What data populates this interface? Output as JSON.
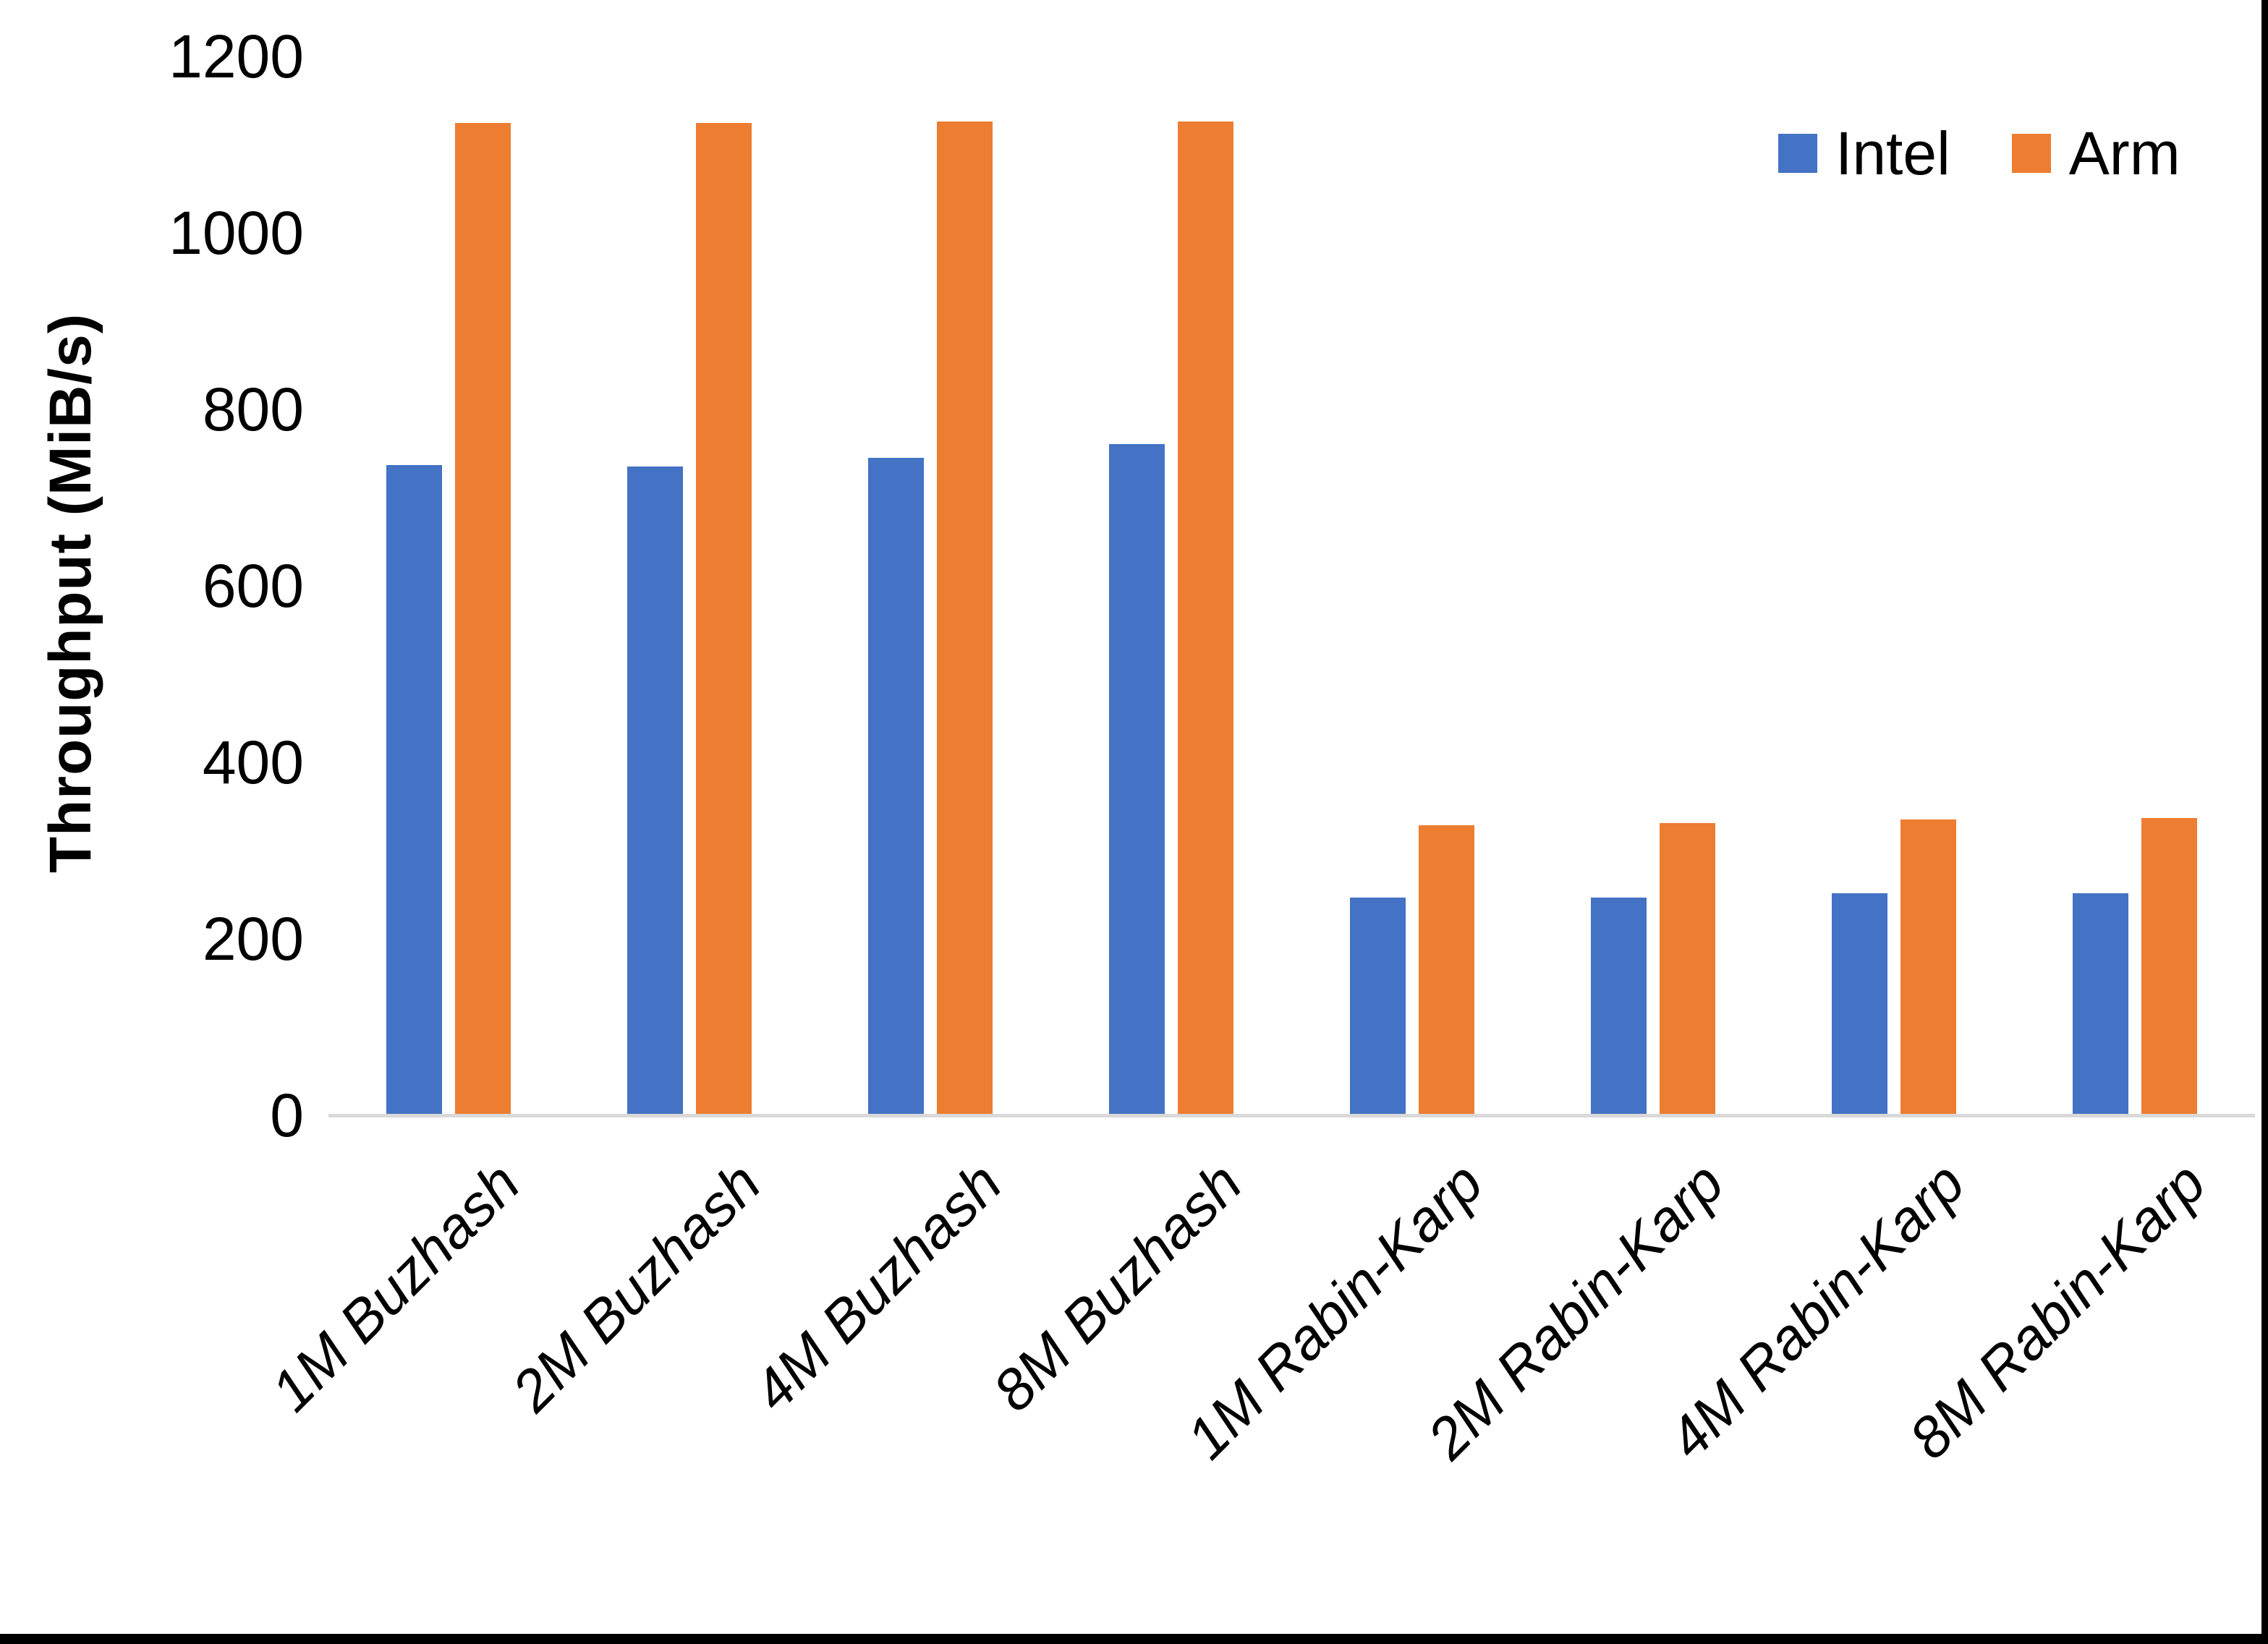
{
  "chart_data": {
    "type": "bar",
    "title": "",
    "ylabel": "Throughput (MiB/s)",
    "xlabel": "",
    "ylim": [
      0,
      1200
    ],
    "yticks": [
      0,
      200,
      400,
      600,
      800,
      1000,
      1200
    ],
    "grid": false,
    "legend_position": "top-right",
    "categories": [
      "1M Buzhash",
      "2M Buzhash",
      "4M Buzhash",
      "8M Buzhash",
      "1M Rabin-Karp",
      "2M Rabin-Karp",
      "4M Rabin-Karp",
      "8M Rabin-Karp"
    ],
    "series": [
      {
        "name": "Intel",
        "color": "#4472C4",
        "values": [
          737,
          735,
          745,
          761,
          247,
          247,
          252,
          252
        ]
      },
      {
        "name": "Arm",
        "color": "#ED7D31",
        "values": [
          1125,
          1125,
          1126,
          1126,
          329,
          331,
          335,
          337
        ]
      }
    ],
    "axis_line_color": "#D9D9D9",
    "text_color": "#000000",
    "frame_border_color": "#000000"
  }
}
